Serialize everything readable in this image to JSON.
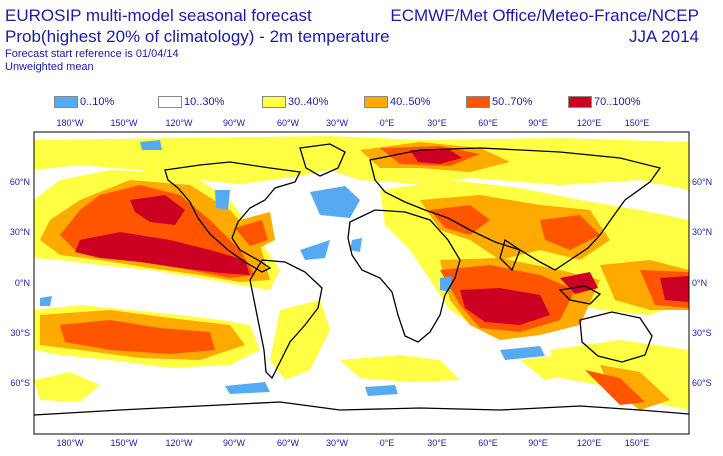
{
  "header": {
    "title": "EUROSIP multi-model seasonal forecast",
    "subtitle": "Prob(highest 20% of climatology) - 2m temperature",
    "reference": "Forecast start reference is 01/04/14",
    "mean": "Unweighted mean",
    "centres": "ECMWF/Met Office/Meteo-France/NCEP",
    "season": "JJA 2014"
  },
  "legend": [
    {
      "label": "0..10%",
      "color": "#55aaf2"
    },
    {
      "label": "10..30%",
      "color": "#ffffff"
    },
    {
      "label": "30..40%",
      "color": "#ffff44"
    },
    {
      "label": "40..50%",
      "color": "#ffaa00"
    },
    {
      "label": "50..70%",
      "color": "#ff5500"
    },
    {
      "label": "70..100%",
      "color": "#cc0022"
    }
  ],
  "axes": {
    "lon_labels": [
      "180°W",
      "150°W",
      "120°W",
      "90°W",
      "60°W",
      "30°W",
      "0°E",
      "30°E",
      "60°E",
      "90°E",
      "120°E",
      "150°E"
    ],
    "lat_labels": [
      "60°N",
      "30°N",
      "0°N",
      "30°S",
      "60°S"
    ]
  }
}
